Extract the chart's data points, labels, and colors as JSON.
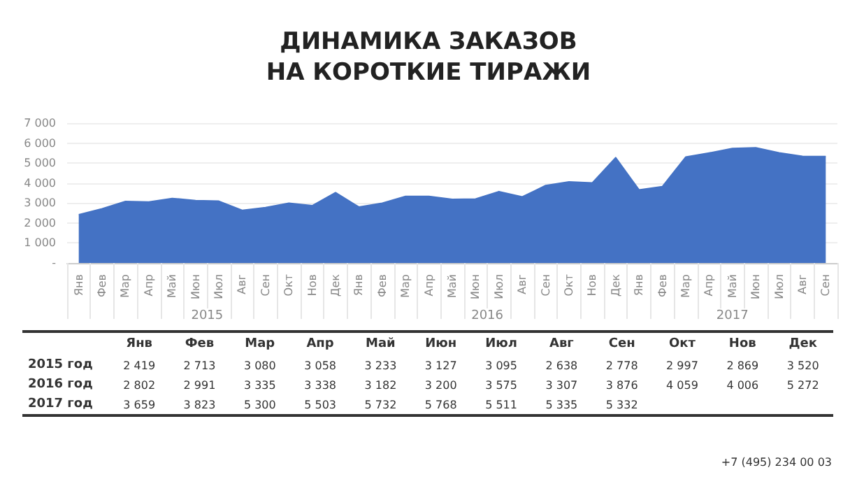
{
  "chart_data": {
    "type": "area",
    "title": "ДИНАМИКА ЗАКАЗОВ\nНА КОРОТКИЕ ТИРАЖИ",
    "categories": [
      "Янв",
      "Фев",
      "Мар",
      "Апр",
      "Май",
      "Июн",
      "Июл",
      "Авг",
      "Сен",
      "Окт",
      "Нов",
      "Дек",
      "Янв",
      "Фев",
      "Мар",
      "Апр",
      "Май",
      "Июн",
      "Июл",
      "Авг",
      "Сен",
      "Окт",
      "Нов",
      "Дек",
      "Янв",
      "Фев",
      "Мар",
      "Апр",
      "Май",
      "Июн",
      "Июл",
      "Авг",
      "Сен"
    ],
    "series": [
      {
        "color": "#4472c4",
        "values": [
          2419,
          2713,
          3080,
          3058,
          3233,
          3127,
          3095,
          2638,
          2778,
          2997,
          2869,
          3520,
          2802,
          2991,
          3335,
          3338,
          3182,
          3200,
          3575,
          3307,
          3876,
          4059,
          4006,
          5272,
          3659,
          3823,
          5300,
          5503,
          5732,
          5768,
          5511,
          5335,
          5332
        ]
      }
    ],
    "ylim": [
      0,
      7000
    ],
    "yticks": [
      {
        "value": 0,
        "label": "-"
      },
      {
        "value": 1000,
        "label": "1 000"
      },
      {
        "value": 2000,
        "label": "2 000"
      },
      {
        "value": 3000,
        "label": "3 000"
      },
      {
        "value": 4000,
        "label": "4 000"
      },
      {
        "value": 5000,
        "label": "5 000"
      },
      {
        "value": 6000,
        "label": "6 000"
      },
      {
        "value": 7000,
        "label": "7 000"
      }
    ],
    "grid": "y",
    "value_labels": [
      "2 419",
      "2 713",
      "3 080",
      "3 058",
      "3 233",
      "3 127",
      "3 095",
      "2 638",
      "2 778",
      "2 997",
      "2 869",
      "3 520",
      "2 802",
      "2 991",
      "3 335",
      "3 338",
      "3 182",
      "3 200",
      "3 575",
      "3 307",
      "3 876",
      "4 059",
      "4 006",
      "5 272",
      "3 659",
      "3 823",
      "5 300",
      "5 503",
      "5 732",
      "5 768",
      "5 511",
      "5 335",
      "5 332"
    ],
    "annotations": [
      "2015",
      "2016",
      "2017",
      "2015 год",
      "2016 год",
      "2017 год",
      "+7 (495) 234 00 03"
    ]
  }
}
